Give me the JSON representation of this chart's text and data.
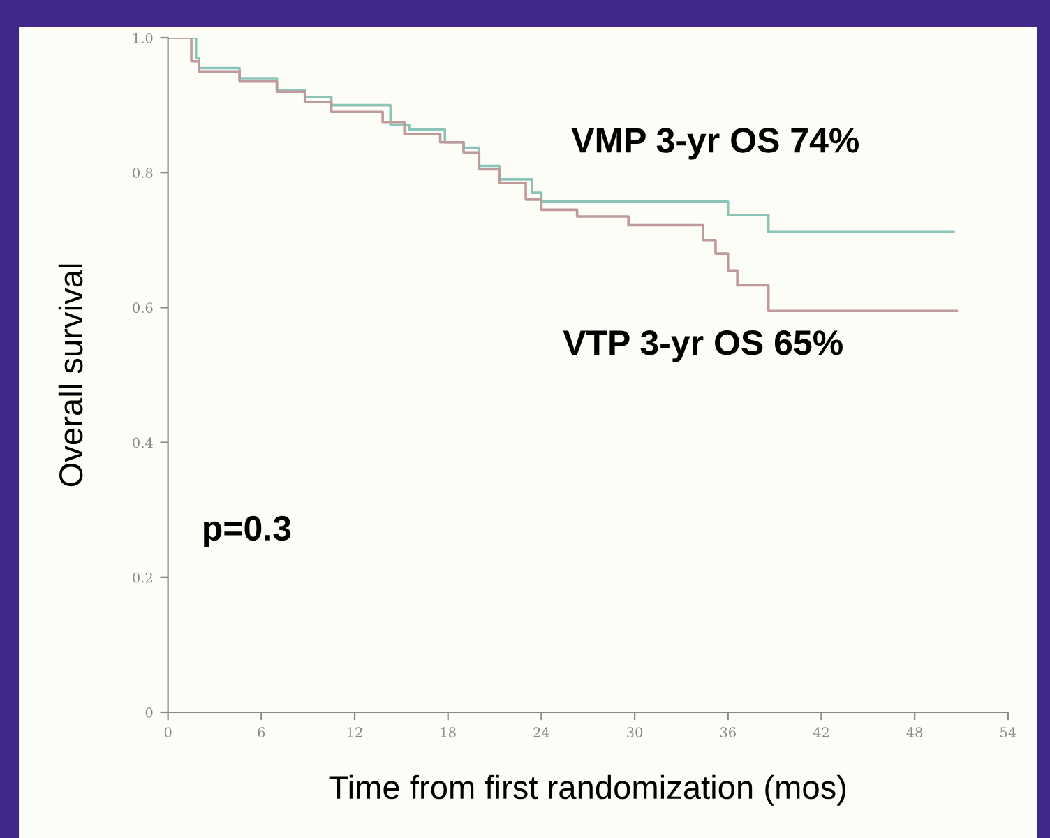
{
  "chart_data": {
    "type": "step",
    "xlabel": "Time from first randomization (mos)",
    "ylabel": "Overall survival",
    "xlim": [
      0,
      54
    ],
    "xticks": [
      0,
      6,
      12,
      18,
      24,
      30,
      36,
      42,
      48,
      54
    ],
    "ylim": [
      0,
      1.0
    ],
    "yticks": [
      0,
      0.2,
      0.4,
      0.6,
      0.8,
      {
        "value": 1.0,
        "label": "1.0"
      }
    ],
    "series": [
      {
        "color": "#8cc4ba",
        "x": [
          0,
          1.8,
          2,
          4.6,
          7,
          8.8,
          10.5,
          14.3,
          15.5,
          17.8,
          19,
          20,
          21.3,
          23.4,
          24,
          36,
          38.6,
          50.5
        ],
        "values": [
          1.0,
          0.97,
          0.955,
          0.94,
          0.922,
          0.912,
          0.9,
          0.871,
          0.864,
          0.845,
          0.837,
          0.81,
          0.79,
          0.77,
          0.757,
          0.737,
          0.712,
          0.712
        ]
      },
      {
        "color": "#c09a9a",
        "x": [
          0,
          1.5,
          2,
          4.6,
          7,
          8.8,
          10.5,
          13.8,
          15.2,
          17.5,
          19,
          20,
          21.3,
          23,
          24,
          26.3,
          29.6,
          34.4,
          35.2,
          36,
          36.6,
          38.6,
          50.7
        ],
        "values": [
          1.0,
          0.965,
          0.95,
          0.935,
          0.92,
          0.905,
          0.89,
          0.875,
          0.857,
          0.845,
          0.83,
          0.805,
          0.785,
          0.76,
          0.745,
          0.735,
          0.722,
          0.7,
          0.68,
          0.655,
          0.633,
          0.595,
          0.595
        ]
      }
    ],
    "annotations": [
      "VMP 3-yr OS 74%",
      "VTP 3-yr OS 65%",
      "p=0.3"
    ],
    "grid": false,
    "legend": false,
    "marker": "none",
    "line_style": "solid"
  }
}
